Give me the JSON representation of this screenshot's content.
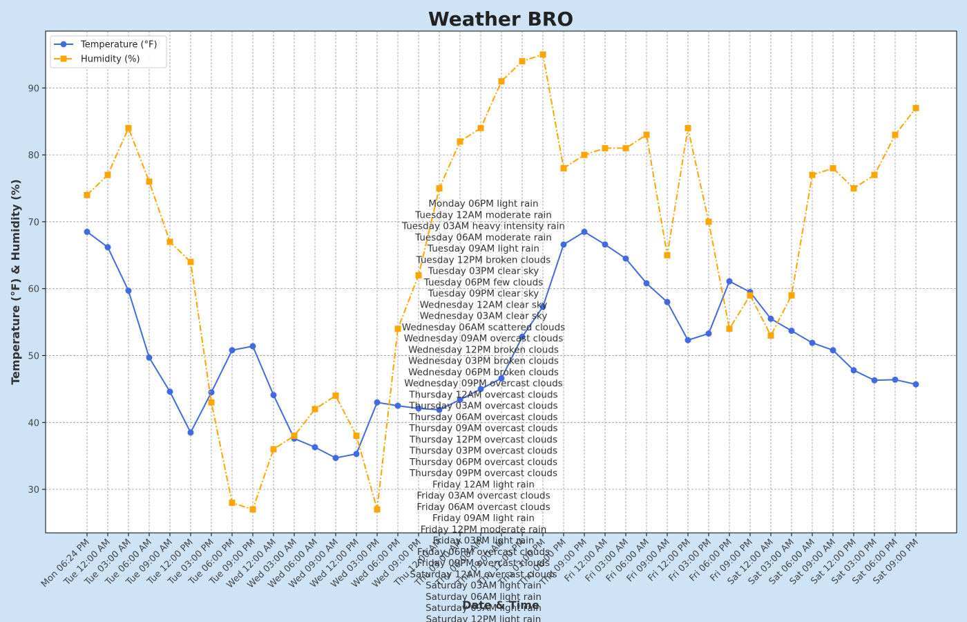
{
  "chart_data": {
    "type": "line",
    "title": "Weather BRO",
    "xlabel": "Date & Time",
    "ylabel": "Temperature (°F) & Humidity (%)",
    "ylim": [
      23.5,
      98.5
    ],
    "y_ticks": [
      30,
      40,
      50,
      60,
      70,
      80,
      90
    ],
    "grid": true,
    "legend_position": "top-left",
    "categories": [
      "Mon 06:24 PM",
      "Tue 12:00 AM",
      "Tue 03:00 AM",
      "Tue 06:00 AM",
      "Tue 09:00 AM",
      "Tue 12:00 PM",
      "Tue 03:00 PM",
      "Tue 06:00 PM",
      "Tue 09:00 PM",
      "Wed 12:00 AM",
      "Wed 03:00 AM",
      "Wed 06:00 AM",
      "Wed 09:00 AM",
      "Wed 12:00 PM",
      "Wed 03:00 PM",
      "Wed 06:00 PM",
      "Wed 09:00 PM",
      "Thu 12:00 AM",
      "Thu 03:00 AM",
      "Thu 06:00 AM",
      "Thu 09:00 AM",
      "Thu 12:00 PM",
      "Thu 03:00 PM",
      "Thu 06:00 PM",
      "Thu 09:00 PM",
      "Fri 12:00 AM",
      "Fri 03:00 AM",
      "Fri 06:00 AM",
      "Fri 09:00 AM",
      "Fri 12:00 PM",
      "Fri 03:00 PM",
      "Fri 06:00 PM",
      "Fri 09:00 PM",
      "Sat 12:00 AM",
      "Sat 03:00 AM",
      "Sat 06:00 AM",
      "Sat 09:00 AM",
      "Sat 12:00 PM",
      "Sat 03:00 PM",
      "Sat 06:00 PM",
      "Sat 09:00 PM"
    ],
    "series": [
      {
        "name": "Temperature (°F)",
        "color": "#4169e1",
        "marker": "circle",
        "line_style": "solid",
        "values": [
          68.5,
          66.2,
          59.7,
          49.7,
          44.6,
          38.5,
          44.5,
          50.8,
          51.4,
          44.1,
          37.6,
          36.3,
          34.7,
          35.3,
          43.0,
          42.5,
          42.1,
          41.9,
          43.4,
          45.0,
          46.6,
          52.8,
          57.3,
          66.6,
          68.5,
          66.6,
          64.5,
          60.8,
          58.0,
          52.3,
          53.3,
          61.1,
          59.5,
          55.5,
          53.7,
          51.9,
          50.8,
          47.8,
          46.3,
          46.4,
          45.7
        ]
      },
      {
        "name": "Humidity (%)",
        "color": "#ffa500",
        "marker": "square",
        "line_style": "dash-dot",
        "values": [
          74,
          77,
          84,
          76,
          67,
          64,
          43,
          28,
          27,
          36,
          38,
          42,
          44,
          38,
          27,
          54,
          62,
          75,
          82,
          84,
          91,
          94,
          95,
          78,
          80,
          81,
          81,
          83,
          65,
          84,
          70,
          54,
          59,
          53,
          59,
          77,
          78,
          75,
          77,
          83,
          87
        ]
      }
    ],
    "annotation_lines": [
      "Monday 06PM light rain",
      "Tuesday 12AM moderate rain",
      "Tuesday 03AM heavy intensity rain",
      "Tuesday 06AM moderate rain",
      "Tuesday 09AM light rain",
      "Tuesday 12PM broken clouds",
      "Tuesday 03PM clear sky",
      "Tuesday 06PM few clouds",
      "Tuesday 09PM clear sky",
      "Wednesday 12AM clear sky",
      "Wednesday 03AM clear sky",
      "Wednesday 06AM scattered clouds",
      "Wednesday 09AM overcast clouds",
      "Wednesday 12PM broken clouds",
      "Wednesday 03PM broken clouds",
      "Wednesday 06PM broken clouds",
      "Wednesday 09PM overcast clouds",
      "Thursday 12AM overcast clouds",
      "Thursday 03AM overcast clouds",
      "Thursday 06AM overcast clouds",
      "Thursday 09AM overcast clouds",
      "Thursday 12PM overcast clouds",
      "Thursday 03PM overcast clouds",
      "Thursday 06PM overcast clouds",
      "Thursday 09PM overcast clouds",
      "Friday 12AM light rain",
      "Friday 03AM overcast clouds",
      "Friday 06AM overcast clouds",
      "Friday 09AM light rain",
      "Friday 12PM moderate rain",
      "Friday 03PM light rain",
      "Friday 06PM overcast clouds",
      "Friday 09PM overcast clouds",
      "Saturday 12AM overcast clouds",
      "Saturday 03AM light rain",
      "Saturday 06AM light rain",
      "Saturday 09AM light rain",
      "Saturday 12PM light rain"
    ]
  }
}
